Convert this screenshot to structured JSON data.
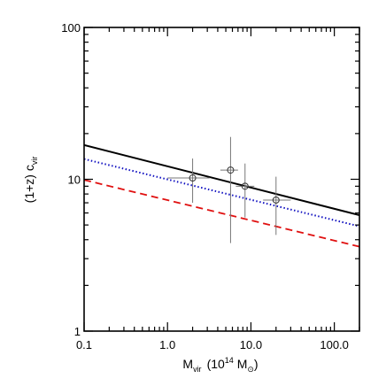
{
  "chart_data": {
    "type": "line",
    "title": "",
    "xlabel": {
      "prefix": "M",
      "subscript": "vir",
      "unit_open": "(10",
      "unit_exponent": "14",
      "unit_body": " M",
      "unit_subscript": "⊙",
      "unit_close": ")"
    },
    "ylabel": {
      "prefix": "(1+z)  c",
      "subscript": "vir"
    },
    "x_scale": "log",
    "y_scale": "log",
    "xlim": [
      0.1,
      200
    ],
    "ylim": [
      1,
      100
    ],
    "x_major_ticks": [
      0.1,
      1.0,
      10.0,
      100.0
    ],
    "x_tick_labels": [
      "0.1",
      "1.0",
      "10.0",
      "100.0"
    ],
    "y_major_ticks": [
      1,
      10,
      100
    ],
    "y_tick_labels": [
      "1",
      "10",
      "100"
    ],
    "grid": false,
    "legend": "none",
    "series": [
      {
        "style": "solid",
        "color": "#000000",
        "x": [
          0.1,
          200
        ],
        "y": [
          16.8,
          5.8
        ]
      },
      {
        "style": "dotted",
        "color": "#1010c0",
        "x": [
          0.1,
          200
        ],
        "y": [
          13.6,
          4.9
        ]
      },
      {
        "style": "dashed",
        "color": "#e01010",
        "x": [
          0.1,
          200
        ],
        "y": [
          9.9,
          3.6
        ]
      }
    ],
    "points": [
      {
        "x": 2.0,
        "y": 10.2,
        "x_err": [
          1.0,
          3.2
        ],
        "y_err": [
          7.0,
          13.7
        ]
      },
      {
        "x": 5.7,
        "y": 11.5,
        "x_err": [
          4.3,
          7.0
        ],
        "y_err": [
          3.8,
          19.0
        ]
      },
      {
        "x": 8.5,
        "y": 9.0,
        "x_err": [
          6.6,
          11.0
        ],
        "y_err": [
          5.6,
          12.7
        ]
      },
      {
        "x": 20.0,
        "y": 7.3,
        "x_err": [
          14.0,
          30.0
        ],
        "y_err": [
          4.3,
          10.4
        ]
      }
    ]
  }
}
